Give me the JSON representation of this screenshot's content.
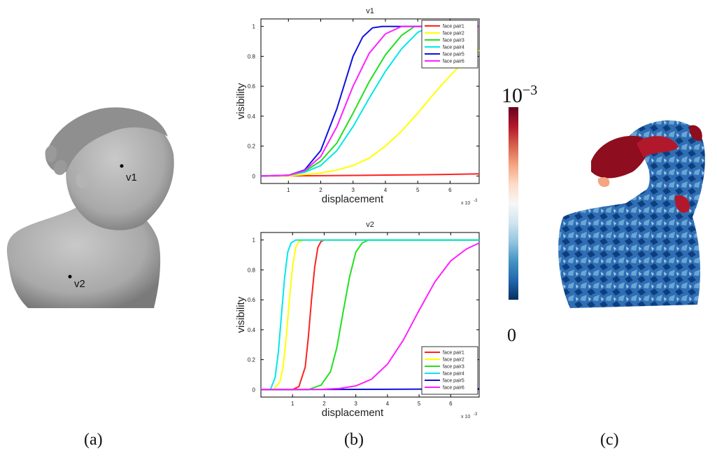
{
  "captions": {
    "a": "(a)",
    "b": "(b)",
    "c": "(c)"
  },
  "model": {
    "vertex1_label": "v1",
    "vertex2_label": "v2"
  },
  "colorbar": {
    "max_base": "10",
    "max_exp": "−3",
    "min_label": "0",
    "stops": [
      "#053061",
      "#2166ac",
      "#4393c3",
      "#92c5de",
      "#d1e5f0",
      "#f7f7f7",
      "#fddbc7",
      "#f4a582",
      "#d6604d",
      "#b2182b",
      "#67001f"
    ]
  },
  "colors": {
    "face_pair1": "#ff2020",
    "face_pair2": "#ffff00",
    "face_pair3": "#20e020",
    "face_pair4": "#00e8e8",
    "face_pair5": "#1010e0",
    "face_pair6": "#ff20ff"
  },
  "chart_data": [
    {
      "type": "line",
      "title": "v1",
      "xlabel": "displacement",
      "ylabel": "visibility",
      "x_scale_label": "x 10",
      "x_scale_exp": "-3",
      "xlim": [
        0.15,
        6.9
      ],
      "ylim": [
        -0.05,
        1.05
      ],
      "xticks": [
        "1",
        "2",
        "3",
        "4",
        "5",
        "6"
      ],
      "yticks": [
        "0",
        "0.2",
        "0.4",
        "0.6",
        "0.8",
        "1"
      ],
      "legend_position": "top-right",
      "series": [
        {
          "name": "face pair1",
          "color": "#ff2020",
          "x": [
            0.15,
            1,
            2,
            3,
            4,
            5,
            6,
            6.9
          ],
          "y": [
            0.0,
            0.001,
            0.002,
            0.004,
            0.006,
            0.008,
            0.011,
            0.014
          ]
        },
        {
          "name": "face pair2",
          "color": "#ffff00",
          "x": [
            0.15,
            1,
            1.5,
            2,
            2.5,
            3,
            3.5,
            4,
            4.5,
            5,
            5.5,
            6,
            6.5,
            6.9
          ],
          "y": [
            0,
            0,
            0.01,
            0.02,
            0.04,
            0.07,
            0.12,
            0.2,
            0.3,
            0.42,
            0.55,
            0.67,
            0.78,
            0.84
          ]
        },
        {
          "name": "face pair3",
          "color": "#20e020",
          "x": [
            0.15,
            1,
            1.5,
            2,
            2.5,
            3,
            3.5,
            4,
            4.5,
            4.9,
            5.3,
            6,
            6.9
          ],
          "y": [
            0,
            0.005,
            0.03,
            0.1,
            0.22,
            0.42,
            0.63,
            0.81,
            0.94,
            1.0,
            1.0,
            1.0,
            1.0
          ]
        },
        {
          "name": "face pair4",
          "color": "#00e8e8",
          "x": [
            0.15,
            1,
            1.5,
            2,
            2.5,
            3,
            3.5,
            4,
            4.5,
            5,
            5.4,
            6,
            6.9
          ],
          "y": [
            0,
            0.005,
            0.025,
            0.07,
            0.17,
            0.33,
            0.52,
            0.7,
            0.85,
            0.96,
            1.0,
            1.0,
            1.0
          ]
        },
        {
          "name": "face pair5",
          "color": "#1010e0",
          "x": [
            0.15,
            1,
            1.5,
            2,
            2.5,
            3,
            3.3,
            3.6,
            3.9,
            4.2,
            6.9
          ],
          "y": [
            0,
            0.005,
            0.04,
            0.17,
            0.45,
            0.8,
            0.93,
            0.99,
            1.0,
            1.0,
            1.0
          ]
        },
        {
          "name": "face pair6",
          "color": "#ff20ff",
          "x": [
            0.15,
            1,
            1.5,
            2,
            2.5,
            3,
            3.5,
            4,
            4.5,
            5,
            6.9
          ],
          "y": [
            0,
            0.005,
            0.035,
            0.13,
            0.33,
            0.6,
            0.82,
            0.95,
            1.0,
            1.0,
            1.0
          ]
        }
      ]
    },
    {
      "type": "line",
      "title": "v2",
      "xlabel": "displacement",
      "ylabel": "visibility",
      "x_scale_label": "x 10",
      "x_scale_exp": "-3",
      "xlim": [
        0.0,
        6.9
      ],
      "ylim": [
        -0.05,
        1.05
      ],
      "xticks": [
        "1",
        "2",
        "3",
        "4",
        "5",
        "6"
      ],
      "yticks": [
        "0",
        "0.2",
        "0.4",
        "0.6",
        "0.8",
        "1"
      ],
      "legend_position": "bottom-right",
      "series": [
        {
          "name": "face pair1",
          "color": "#ff2020",
          "x": [
            0,
            1,
            1.2,
            1.4,
            1.5,
            1.6,
            1.7,
            1.8,
            1.9,
            2.0,
            6.9
          ],
          "y": [
            0,
            0,
            0.02,
            0.15,
            0.35,
            0.6,
            0.82,
            0.95,
            0.99,
            1.0,
            1.0
          ]
        },
        {
          "name": "face pair2",
          "color": "#ffff00",
          "x": [
            0,
            0.4,
            0.6,
            0.7,
            0.8,
            0.9,
            1.0,
            1.1,
            1.2,
            1.4,
            6.9
          ],
          "y": [
            0,
            0,
            0.05,
            0.15,
            0.35,
            0.6,
            0.82,
            0.95,
            0.99,
            1.0,
            1.0
          ]
        },
        {
          "name": "face pair3",
          "color": "#20e020",
          "x": [
            0,
            1.5,
            1.9,
            2.2,
            2.4,
            2.6,
            2.8,
            3.0,
            3.2,
            3.4,
            6.9
          ],
          "y": [
            0,
            0,
            0.03,
            0.12,
            0.28,
            0.52,
            0.75,
            0.92,
            0.98,
            1.0,
            1.0
          ]
        },
        {
          "name": "face pair4",
          "color": "#00e8e8",
          "x": [
            0,
            0.3,
            0.45,
            0.55,
            0.65,
            0.75,
            0.85,
            0.95,
            1.1,
            6.9
          ],
          "y": [
            0,
            0,
            0.08,
            0.25,
            0.5,
            0.75,
            0.92,
            0.98,
            1.0,
            1.0
          ]
        },
        {
          "name": "face pair5",
          "color": "#1010e0",
          "x": [
            0,
            2,
            4,
            6,
            6.9
          ],
          "y": [
            0,
            0.001,
            0.002,
            0.004,
            0.006
          ]
        },
        {
          "name": "face pair6",
          "color": "#ff20ff",
          "x": [
            0,
            2,
            2.5,
            3,
            3.5,
            4,
            4.5,
            5,
            5.5,
            6,
            6.5,
            6.9
          ],
          "y": [
            0,
            0.002,
            0.008,
            0.025,
            0.07,
            0.17,
            0.33,
            0.53,
            0.72,
            0.86,
            0.94,
            0.98
          ]
        }
      ]
    }
  ]
}
